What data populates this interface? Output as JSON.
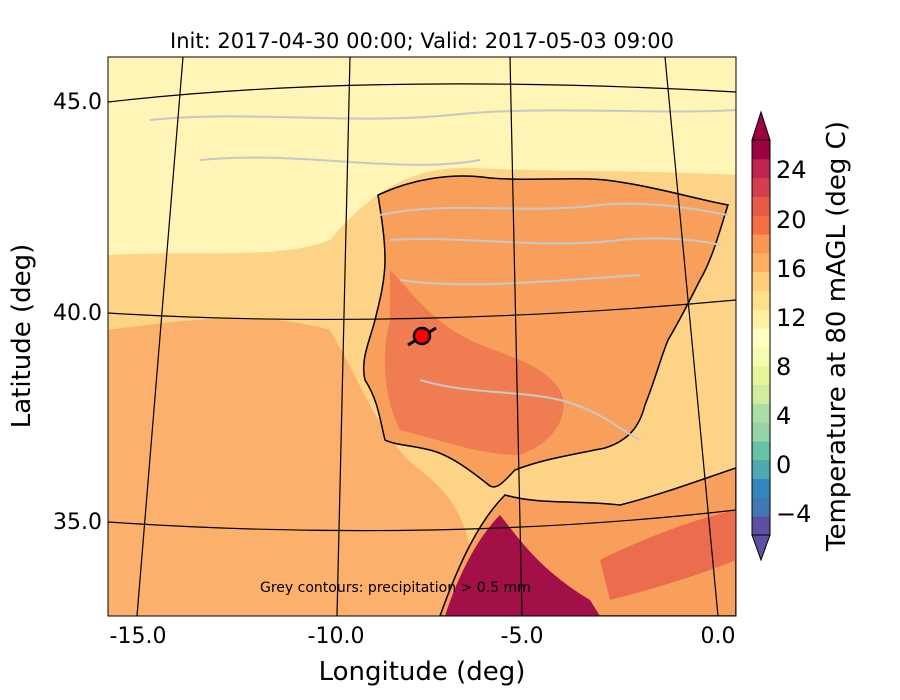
{
  "title": "Init: 2017-04-30 00:00; Valid: 2017-05-03 09:00",
  "axes": {
    "xlabel": "Longitude (deg)",
    "ylabel": "Latitude (deg)",
    "xticks": [
      "-15.0",
      "-10.0",
      "-5.0",
      "0.0"
    ],
    "yticks": [
      "45.0",
      "40.0",
      "35.0"
    ]
  },
  "colorbar": {
    "label": "Temperature at 80 mAGL (deg C)",
    "ticks": [
      "24",
      "20",
      "16",
      "12",
      "8",
      "4",
      "0",
      "−4"
    ],
    "colors": [
      "#5e4fa2",
      "#3f78b5",
      "#3288bd",
      "#4fa7b1",
      "#66c2a5",
      "#95d4a4",
      "#abdda4",
      "#d0ec9c",
      "#e6f598",
      "#f5fbb1",
      "#ffffbf",
      "#fff0a6",
      "#fee08b",
      "#fdcf7a",
      "#fdae61",
      "#f99655",
      "#f46d43",
      "#e65a48",
      "#d53e4f",
      "#c02450",
      "#9e0142"
    ]
  },
  "annotation": "Grey contours: precipitation > 0.5 mm",
  "marker": {
    "label": "site-marker",
    "color": "#ff0000"
  },
  "colors": {
    "sea_light": "#fef5b6",
    "sea_mid": "#fdd387",
    "sea_warm": "#fbb06b",
    "land": "#f8a05b",
    "land_hot": "#e9604a",
    "desert": "#a31047",
    "contour": "#c7c7c7"
  }
}
